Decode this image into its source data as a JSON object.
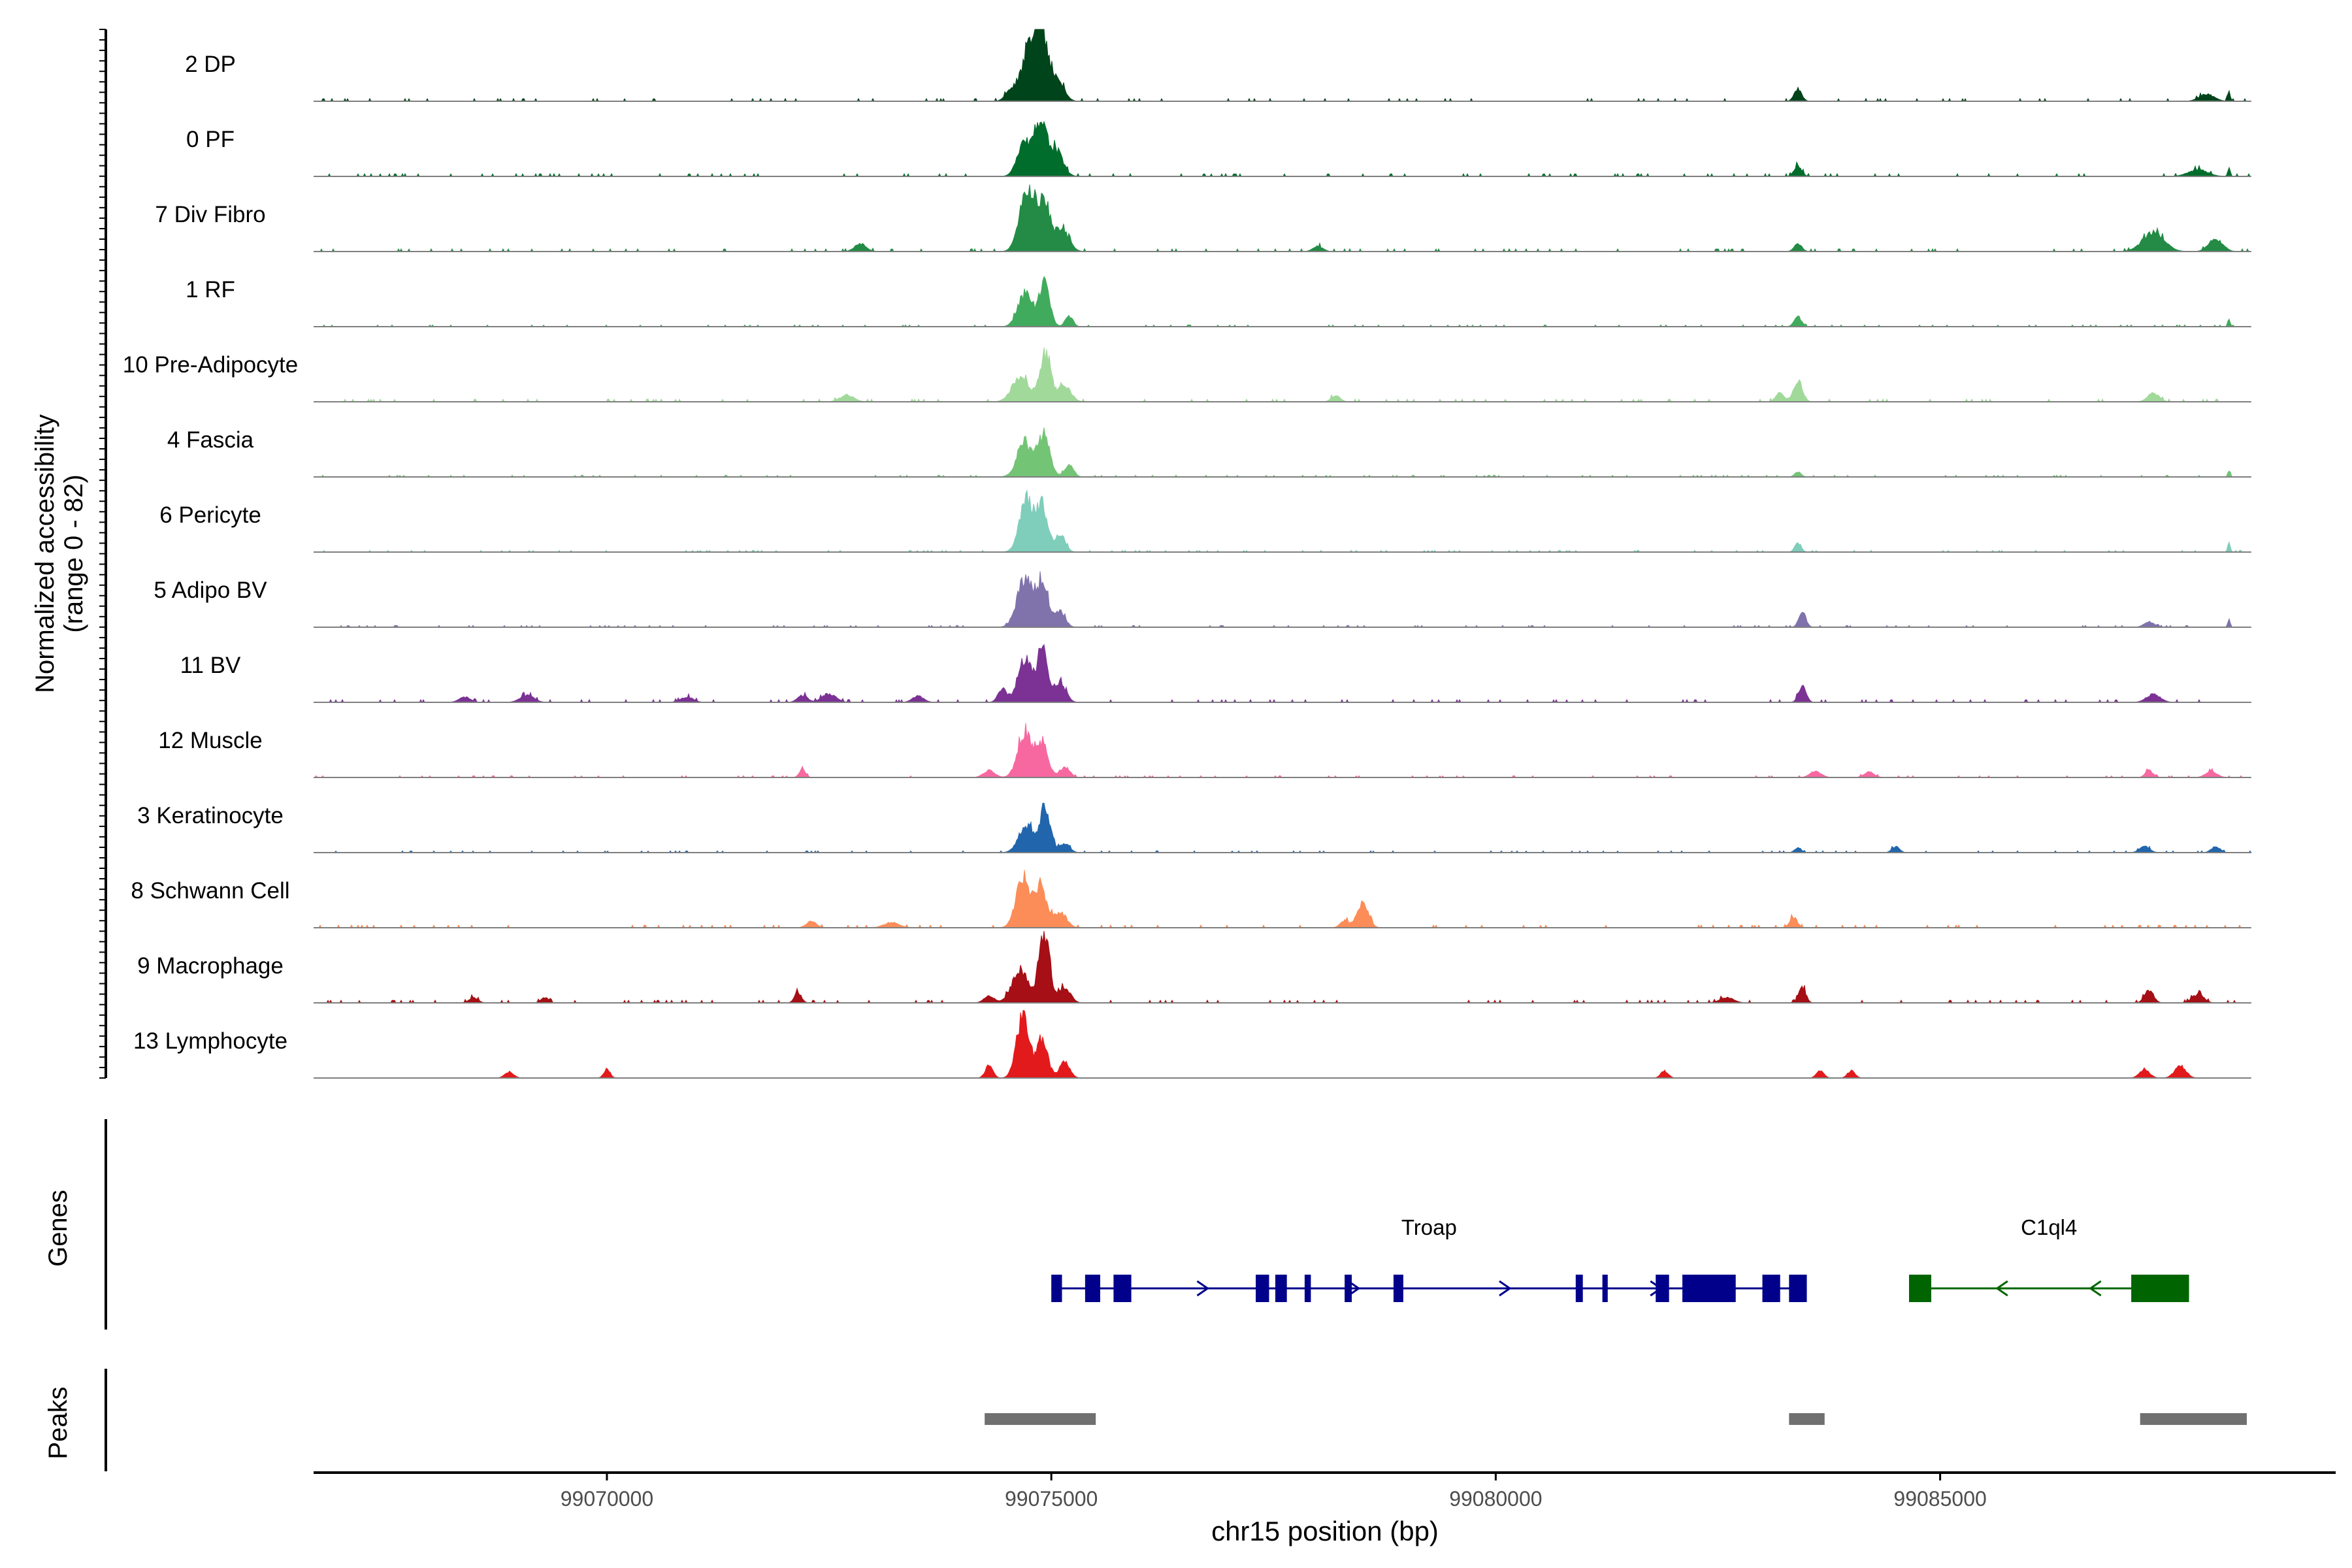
{
  "chart_data": {
    "type": "area",
    "title": "",
    "xlabel": "chr15 position (bp)",
    "ylabel": "Normalized accessibility\n(range 0 - 82)",
    "xlim": [
      99066700,
      99089450
    ],
    "ylim": [
      0,
      82
    ],
    "x_ticks": [
      99070000,
      99075000,
      99080000,
      99085000
    ],
    "x_tick_labels": [
      "99070000",
      "99075000",
      "99080000",
      "99085000"
    ],
    "grid": false,
    "legend": "none",
    "track_labels": {
      "coverage": "",
      "genes": "Genes",
      "peaks": "Peaks"
    },
    "series": [
      {
        "name": "2 DP",
        "color": "#00441b",
        "baseline": 3,
        "peaks": [
          [
            99074760,
            60,
            130
          ],
          [
            99074880,
            72,
            90
          ],
          [
            99075050,
            30,
            110
          ],
          [
            99074550,
            12,
            90
          ],
          [
            99083400,
            14,
            60
          ],
          [
            99088000,
            8,
            120
          ],
          [
            99088250,
            12,
            20
          ]
        ]
      },
      {
        "name": "0 PF",
        "color": "#006d2c",
        "baseline": 3,
        "peaks": [
          [
            99074700,
            40,
            110
          ],
          [
            99074880,
            55,
            95
          ],
          [
            99075050,
            30,
            110
          ],
          [
            99083400,
            12,
            60
          ],
          [
            99087900,
            8,
            150
          ],
          [
            99088250,
            10,
            20
          ]
        ]
      },
      {
        "name": "7 Div Fibro",
        "color": "#238b45",
        "baseline": 3,
        "peaks": [
          [
            99074730,
            70,
            120
          ],
          [
            99074920,
            50,
            100
          ],
          [
            99075120,
            25,
            110
          ],
          [
            99072850,
            9,
            90
          ],
          [
            99083400,
            9,
            60
          ],
          [
            99087400,
            22,
            170
          ],
          [
            99088100,
            15,
            110
          ],
          [
            99078000,
            6,
            80
          ]
        ]
      },
      {
        "name": "1 RF",
        "color": "#41ab5d",
        "baseline": 2,
        "peaks": [
          [
            99074700,
            38,
            110
          ],
          [
            99074920,
            50,
            85
          ],
          [
            99075200,
            12,
            60
          ],
          [
            99083400,
            11,
            60
          ],
          [
            99088250,
            9,
            20
          ]
        ]
      },
      {
        "name": "10 Pre-Adipocyte",
        "color": "#a1d99b",
        "baseline": 3,
        "peaks": [
          [
            99074650,
            30,
            130
          ],
          [
            99074930,
            55,
            90
          ],
          [
            99075150,
            18,
            100
          ],
          [
            99072700,
            8,
            110
          ],
          [
            99078200,
            7,
            70
          ],
          [
            99083400,
            25,
            70
          ],
          [
            99083200,
            10,
            70
          ],
          [
            99087400,
            10,
            90
          ]
        ]
      },
      {
        "name": "4 Fascia",
        "color": "#74c476",
        "baseline": 2,
        "peaks": [
          [
            99074700,
            38,
            120
          ],
          [
            99074920,
            45,
            95
          ],
          [
            99075200,
            14,
            70
          ],
          [
            99083400,
            6,
            50
          ],
          [
            99088250,
            7,
            20
          ]
        ]
      },
      {
        "name": "6 Pericyte",
        "color": "#7fcdbb",
        "baseline": 2,
        "peaks": [
          [
            99074720,
            60,
            110
          ],
          [
            99074900,
            52,
            90
          ],
          [
            99075100,
            20,
            80
          ],
          [
            99083400,
            11,
            50
          ],
          [
            99088250,
            12,
            20
          ]
        ]
      },
      {
        "name": "5 Adipo BV",
        "color": "#8073ac",
        "baseline": 2,
        "peaks": [
          [
            99074700,
            55,
            120
          ],
          [
            99074900,
            50,
            95
          ],
          [
            99075100,
            18,
            80
          ],
          [
            99083450,
            18,
            55
          ],
          [
            99087350,
            6,
            80
          ],
          [
            99088250,
            9,
            20
          ]
        ]
      },
      {
        "name": "11 BV",
        "color": "#7b3294",
        "baseline": 3,
        "peaks": [
          [
            99074700,
            50,
            110
          ],
          [
            99074900,
            55,
            90
          ],
          [
            99075100,
            22,
            90
          ],
          [
            99074450,
            15,
            70
          ],
          [
            99073500,
            7,
            90
          ],
          [
            99072500,
            10,
            110
          ],
          [
            99083450,
            18,
            60
          ],
          [
            99087400,
            9,
            110
          ],
          [
            99068400,
            6,
            90
          ],
          [
            99069100,
            8,
            110
          ],
          [
            99070900,
            6,
            100
          ],
          [
            99072200,
            8,
            80
          ]
        ]
      },
      {
        "name": "12 Muscle",
        "color": "#f768a1",
        "baseline": 2,
        "peaks": [
          [
            99074700,
            52,
            110
          ],
          [
            99074900,
            40,
            90
          ],
          [
            99075150,
            12,
            80
          ],
          [
            99074300,
            8,
            90
          ],
          [
            99072200,
            9,
            50
          ],
          [
            99083600,
            7,
            90
          ],
          [
            99084200,
            6,
            80
          ],
          [
            99087350,
            8,
            60
          ],
          [
            99088050,
            7,
            90
          ]
        ]
      },
      {
        "name": "3 Keratinocyte",
        "color": "#2166ac",
        "baseline": 2,
        "peaks": [
          [
            99074720,
            32,
            120
          ],
          [
            99074930,
            48,
            85
          ],
          [
            99075150,
            10,
            80
          ],
          [
            99083400,
            6,
            50
          ],
          [
            99084500,
            7,
            60
          ],
          [
            99087300,
            7,
            80
          ],
          [
            99088100,
            7,
            70
          ]
        ]
      },
      {
        "name": "8 Schwann Cell",
        "color": "#fc8d59",
        "baseline": 3,
        "peaks": [
          [
            99074680,
            55,
            110
          ],
          [
            99074880,
            48,
            95
          ],
          [
            99075100,
            18,
            100
          ],
          [
            99078500,
            28,
            90
          ],
          [
            99078300,
            8,
            70
          ],
          [
            99083350,
            12,
            60
          ],
          [
            99073200,
            6,
            120
          ],
          [
            99072300,
            7,
            80
          ]
        ]
      },
      {
        "name": "9 Macrophage",
        "color": "#a50f15",
        "baseline": 3,
        "peaks": [
          [
            99074650,
            38,
            130
          ],
          [
            99074920,
            80,
            85
          ],
          [
            99075150,
            18,
            90
          ],
          [
            99074300,
            8,
            80
          ],
          [
            99072150,
            12,
            55
          ],
          [
            99083450,
            18,
            55
          ],
          [
            99087350,
            15,
            70
          ],
          [
            99087900,
            10,
            90
          ],
          [
            99082600,
            6,
            110
          ],
          [
            99068500,
            6,
            70
          ],
          [
            99069300,
            6,
            60
          ]
        ]
      },
      {
        "name": "13 Lymphocyte",
        "color": "#e31a1c",
        "baseline": 0,
        "peaks": [
          [
            99074680,
            70,
            100
          ],
          [
            99074900,
            45,
            85
          ],
          [
            99075150,
            18,
            80
          ],
          [
            99074300,
            15,
            60
          ],
          [
            99068900,
            7,
            70
          ],
          [
            99070000,
            10,
            50
          ],
          [
            99081900,
            8,
            60
          ],
          [
            99083650,
            8,
            60
          ],
          [
            99084000,
            8,
            60
          ],
          [
            99087300,
            10,
            80
          ],
          [
            99087700,
            14,
            90
          ]
        ]
      }
    ],
    "genes": [
      {
        "name": "Troap",
        "color": "#00008b",
        "strand": "+",
        "start": 99075000,
        "end": 99083500,
        "exons": [
          [
            99075000,
            99075120
          ],
          [
            99075380,
            99075550
          ],
          [
            99075700,
            99075900
          ],
          [
            99077300,
            99077450
          ],
          [
            99077520,
            99077650
          ],
          [
            99077850,
            99077920
          ],
          [
            99078300,
            99078380
          ],
          [
            99078850,
            99078960
          ],
          [
            99080900,
            99080980
          ],
          [
            99081200,
            99081260
          ],
          [
            99081800,
            99081950
          ],
          [
            99082100,
            99082700
          ],
          [
            99083000,
            99083200
          ],
          [
            99083300,
            99083500
          ]
        ]
      },
      {
        "name": "C1ql4",
        "color": "#006400",
        "strand": "-",
        "start": 99084650,
        "end": 99087800,
        "exons": [
          [
            99084650,
            99084900
          ],
          [
            99087150,
            99087800
          ]
        ]
      }
    ],
    "peaks_track": [
      [
        99074250,
        99075500
      ],
      [
        99083300,
        99083700
      ],
      [
        99087250,
        99088450
      ]
    ],
    "peak_color": "#707070"
  }
}
